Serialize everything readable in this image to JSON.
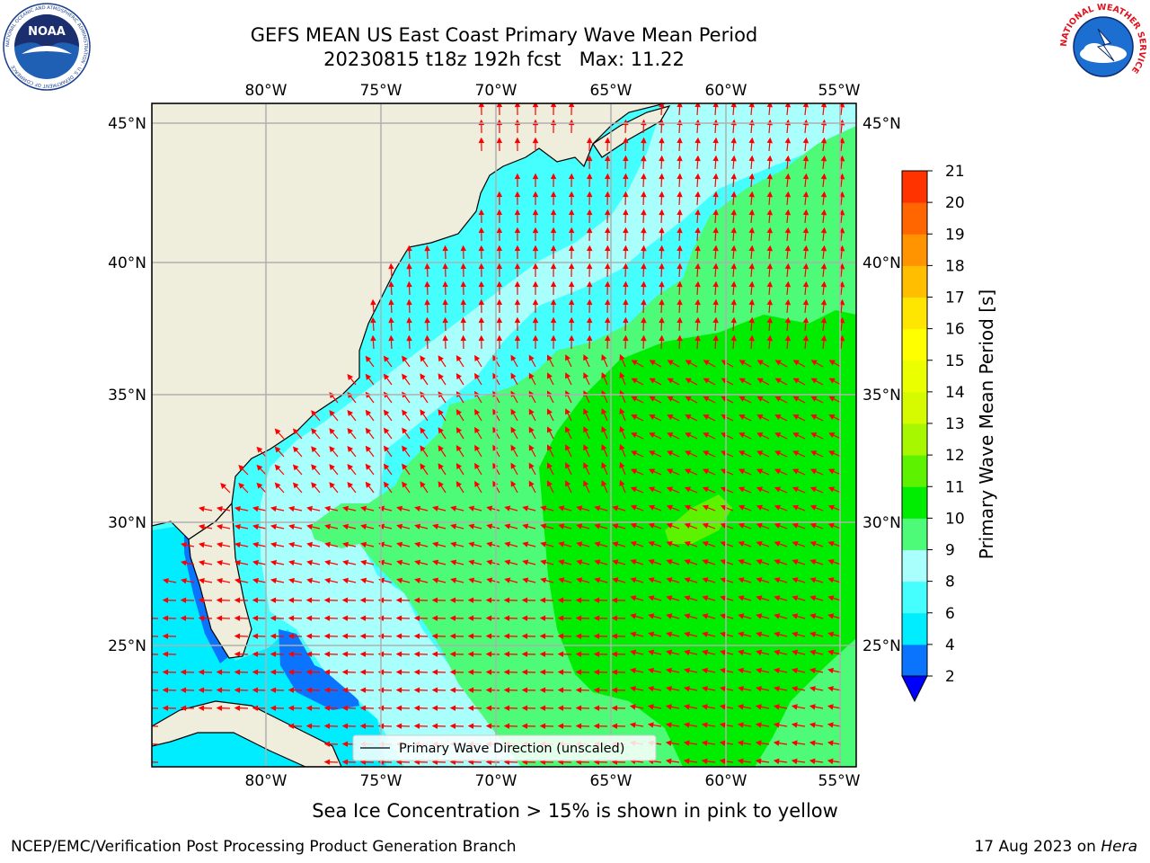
{
  "title": {
    "line1": "GEFS MEAN US East Coast Primary Wave Mean Period",
    "line2": "20230815 t18z 192h fcst   Max: 11.22"
  },
  "logos": {
    "left": {
      "text": "NOAA",
      "ring_text": "NATIONAL OCEANIC AND ATMOSPHERIC ADMINISTRATION · U.S. DEPARTMENT OF COMMERCE"
    },
    "right": {
      "ring_text": "NATIONAL WEATHER SERVICE"
    }
  },
  "map": {
    "lon_labels": [
      "80°W",
      "75°W",
      "70°W",
      "65°W",
      "60°W",
      "55°W"
    ],
    "lat_labels": [
      "45°N",
      "40°N",
      "35°N",
      "30°N",
      "25°N"
    ],
    "legend_text": "Primary Wave Direction (unscaled)",
    "colors": {
      "land": "#efeddc",
      "coast": "#000000",
      "grid": "#b0b0b0",
      "arrow": "#ff0000"
    }
  },
  "colorbar": {
    "title": "Primary Wave Mean Period [s]",
    "ticks": [
      "2",
      "4",
      "6",
      "8",
      "9",
      "10",
      "11",
      "12",
      "13",
      "14",
      "15",
      "16",
      "17",
      "18",
      "19",
      "20",
      "21"
    ],
    "colors": [
      "#0a74ff",
      "#00ecff",
      "#45ffff",
      "#a8fffc",
      "#4dfb78",
      "#00ec00",
      "#5cf200",
      "#a6f700",
      "#d6fb00",
      "#eaff00",
      "#ffff00",
      "#ffe600",
      "#ffbf00",
      "#ff9400",
      "#ff6600",
      "#ff3300"
    ],
    "under_color": "#0000ff"
  },
  "note": "Sea Ice Concentration > 15% is shown in pink to yellow",
  "footer": {
    "left": "NCEP/EMC/Verification Post Processing Product Generation Branch",
    "right_date": "17 Aug 2023 on ",
    "right_host": "Hera"
  }
}
